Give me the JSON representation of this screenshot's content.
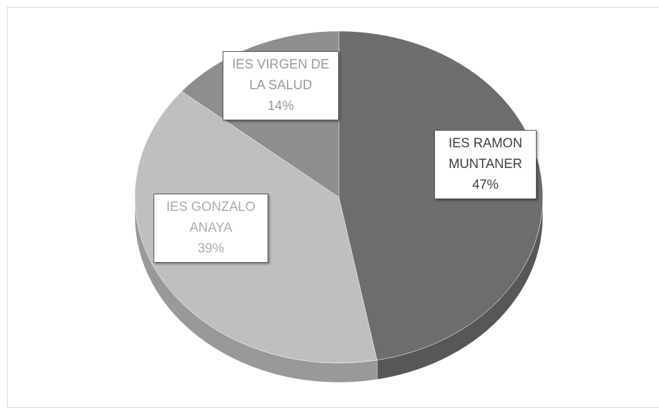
{
  "chart_data": {
    "type": "pie",
    "categories": [
      "IES RAMON MUNTANER",
      "IES GONZALO ANAYA",
      "IES VIRGEN DE LA SALUD"
    ],
    "values": [
      47,
      39,
      14
    ],
    "value_labels": [
      "47%",
      "39%",
      "14%"
    ],
    "colors": [
      "#6d6d6d",
      "#bfbfbf",
      "#8e8e8e"
    ],
    "label_colors": [
      "#404040",
      "#ababab",
      "#9a9a9a"
    ]
  }
}
